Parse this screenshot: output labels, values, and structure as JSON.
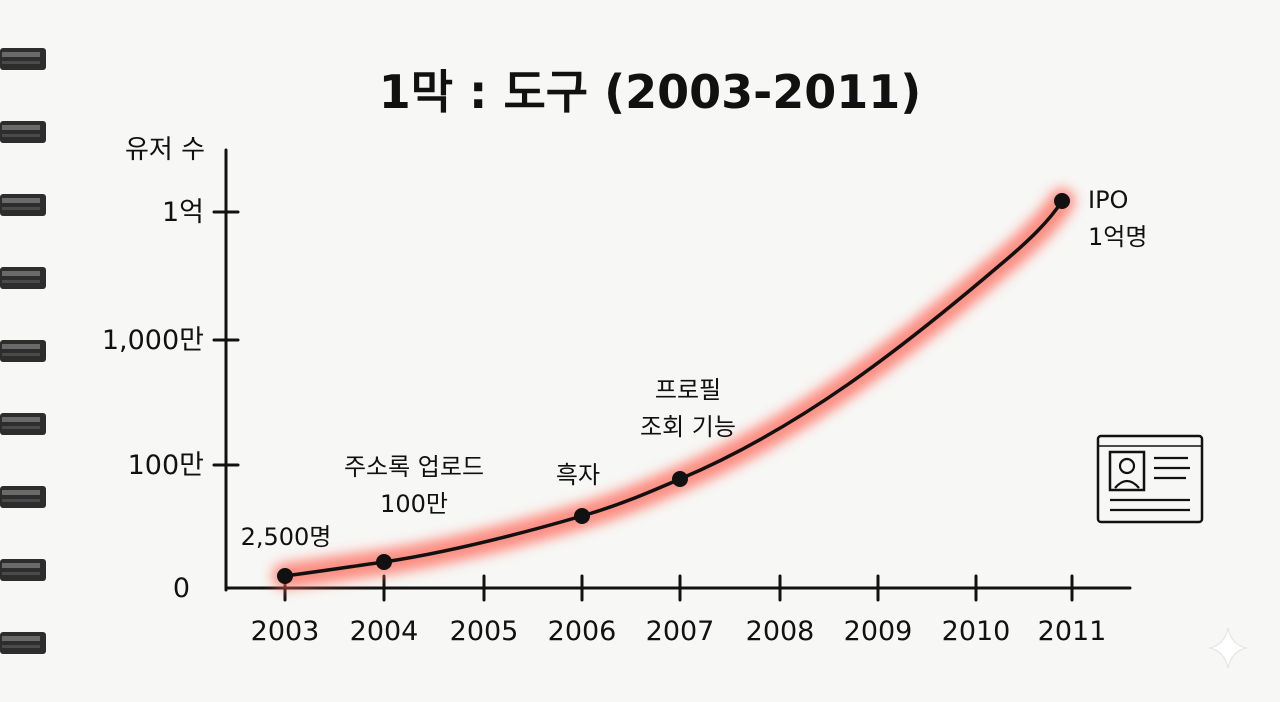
{
  "chart_data": {
    "type": "line",
    "title": "1막 : 도구 (2003-2011)",
    "ylabel": "유저 수",
    "xlabel": "",
    "x": [
      "2003",
      "2004",
      "2005",
      "2006",
      "2007",
      "2008",
      "2009",
      "2010",
      "2011"
    ],
    "y_ticks": [
      "0",
      "100만",
      "1,000만",
      "1억"
    ],
    "y_scale": "log",
    "points": [
      {
        "x": "2003",
        "y": 2500,
        "label": [
          "2,500명"
        ]
      },
      {
        "x": "2004",
        "y": 1000000,
        "label": [
          "주소록 업로드",
          "100만"
        ]
      },
      {
        "x": "2006",
        "y": null,
        "label": [
          "흑자"
        ]
      },
      {
        "x": "2007",
        "y": null,
        "label": [
          "프로필",
          "조회 기능"
        ]
      },
      {
        "x": "2011",
        "y": 100000000,
        "label": [
          "IPO",
          "1억명"
        ]
      }
    ],
    "line_color": "#111111",
    "highlight_color": "#ff6b5b",
    "grid": false
  },
  "icons": {
    "profile_card": "id-card-icon"
  }
}
